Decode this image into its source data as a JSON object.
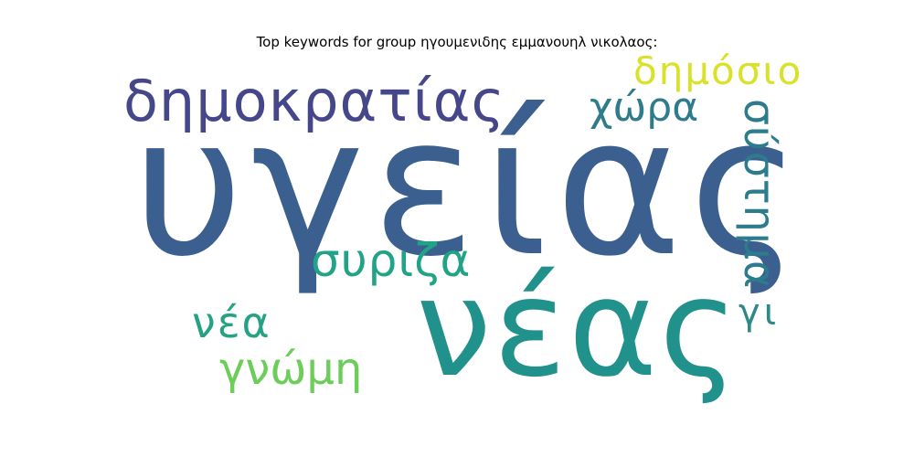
{
  "title": "Top keywords for group ηγουμενιδης εμμανουηλ νικολαος:",
  "words": [
    {
      "text": "υγείας",
      "color": "#3b5f8f"
    },
    {
      "text": "νέας",
      "color": "#21918c"
    },
    {
      "text": "δημοκρατίας",
      "color": "#46478a"
    },
    {
      "text": "δημόσιο",
      "color": "#d8e22a"
    },
    {
      "text": "χώρα",
      "color": "#2e7b8c"
    },
    {
      "text": "σύστημα",
      "color": "#2c7c8d"
    },
    {
      "text": "συριζα",
      "color": "#20a386"
    },
    {
      "text": "νέα",
      "color": "#25a284"
    },
    {
      "text": "γνώμη",
      "color": "#6ccd5a"
    },
    {
      "text": "γι",
      "color": "#2d8a8b"
    }
  ]
}
